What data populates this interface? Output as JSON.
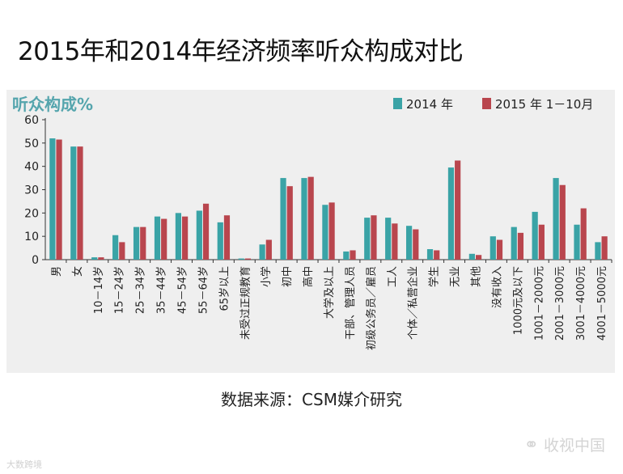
{
  "page": {
    "title": "2015年和2014年经济频率听众构成对比",
    "source": "数据来源：CSM媒介研究",
    "watermark_right": "收视中国",
    "watermark_left": "大数跨境",
    "wm_icon": "wechat-icon"
  },
  "colors": {
    "series_2014": "#3aa3a6",
    "series_2015": "#b9464e",
    "ylabel": "#55a5ad",
    "background": "#efefef"
  },
  "chart_data": {
    "type": "bar",
    "ylabel": "听众构成%",
    "ylim": [
      0,
      60
    ],
    "yticks": [
      0,
      10,
      20,
      30,
      40,
      50,
      60
    ],
    "legend_position": "top-right",
    "grid": false,
    "categories": [
      "男",
      "女",
      "10－14岁",
      "15－24岁",
      "25－34岁",
      "35－44岁",
      "45－54岁",
      "55－64岁",
      "65岁以上",
      "未受过正规教育",
      "小学",
      "初中",
      "高中",
      "大学及以上",
      "干部、管理人员",
      "初级公务员／雇员",
      "工人",
      "个体／私营企业",
      "学生",
      "无业",
      "其他",
      "没有收入",
      "1000元及以下",
      "1001－2000元",
      "2001－3000元",
      "3001－4000元",
      "4001－5000元"
    ],
    "series": [
      {
        "name": "2014 年",
        "values": [
          52,
          48.5,
          1,
          10.5,
          14,
          18.5,
          20,
          21,
          16,
          0.5,
          6.5,
          35,
          35,
          23.5,
          3.5,
          18,
          18,
          14.5,
          4.5,
          39.5,
          2.5,
          10,
          14,
          20.5,
          35,
          15,
          7.5
        ]
      },
      {
        "name": "2015 年 1－10月",
        "values": [
          51.5,
          48.5,
          1,
          7.5,
          14,
          17.5,
          18.5,
          24,
          19,
          0.5,
          8.5,
          31.5,
          35.5,
          24.5,
          4,
          19,
          15.5,
          13,
          4,
          42.5,
          2,
          8.5,
          11.5,
          15,
          32,
          22,
          10
        ]
      }
    ]
  }
}
